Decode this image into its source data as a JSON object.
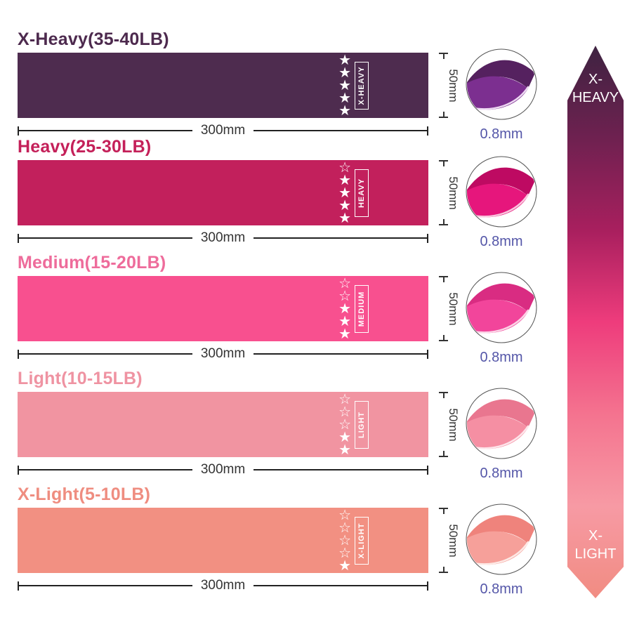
{
  "bands": [
    {
      "title": "X-Heavy(35-40LB)",
      "tag": "X-HEAVY",
      "stars_filled": 5,
      "stars_total": 5,
      "band_color": "#4E2C4F",
      "title_color": "#4D2A4E",
      "fold": {
        "main": "#7C2F90",
        "dark": "#55215F",
        "line": "#EDD9F2"
      },
      "width_label": "300mm",
      "height_label": "50mm",
      "thickness_label": "0.8mm"
    },
    {
      "title": "Heavy(25-30LB)",
      "tag": "HEAVY",
      "stars_filled": 4,
      "stars_total": 5,
      "band_color": "#C2205C",
      "title_color": "#C42059",
      "fold": {
        "main": "#E6167C",
        "dark": "#BE0A62",
        "line": "#F9C6DD"
      },
      "width_label": "300mm",
      "height_label": "50mm",
      "thickness_label": "0.8mm"
    },
    {
      "title": "Medium(15-20LB)",
      "tag": "MEDIUM",
      "stars_filled": 3,
      "stars_total": 5,
      "band_color": "#F8508F",
      "title_color": "#EE6C9B",
      "fold": {
        "main": "#F2459B",
        "dark": "#D92C82",
        "line": "#FBD4E6"
      },
      "width_label": "300mm",
      "height_label": "50mm",
      "thickness_label": "0.8mm"
    },
    {
      "title": "Light(10-15LB)",
      "tag": "LIGHT",
      "stars_filled": 2,
      "stars_total": 5,
      "band_color": "#F194A1",
      "title_color": "#EF93A2",
      "fold": {
        "main": "#F58FA3",
        "dark": "#E9768F",
        "line": "#FDE5EA"
      },
      "width_label": "300mm",
      "height_label": "50mm",
      "thickness_label": "0.8mm"
    },
    {
      "title": "X-Light(5-10LB)",
      "tag": "X-LIGHT",
      "stars_filled": 1,
      "stars_total": 5,
      "band_color": "#F29082",
      "title_color": "#EF8D80",
      "fold": {
        "main": "#F6A09A",
        "dark": "#EF837C",
        "line": "#FDEAE6"
      },
      "width_label": "300mm",
      "height_label": "50mm",
      "thickness_label": "0.8mm"
    }
  ],
  "arrow": {
    "top": [
      "X-",
      "HEAVY"
    ],
    "bottom": [
      "X-",
      "LIGHT"
    ],
    "gradient": [
      "#3E2341",
      "#6E2150",
      "#A81F5E",
      "#EE3C7C",
      "#F4738F",
      "#F79AA4",
      "#F18C82"
    ]
  },
  "colors": {
    "dimension_line": "#222222",
    "dimension_text": "#333333",
    "thickness_text": "#5456A8",
    "star": "#ffffff"
  }
}
